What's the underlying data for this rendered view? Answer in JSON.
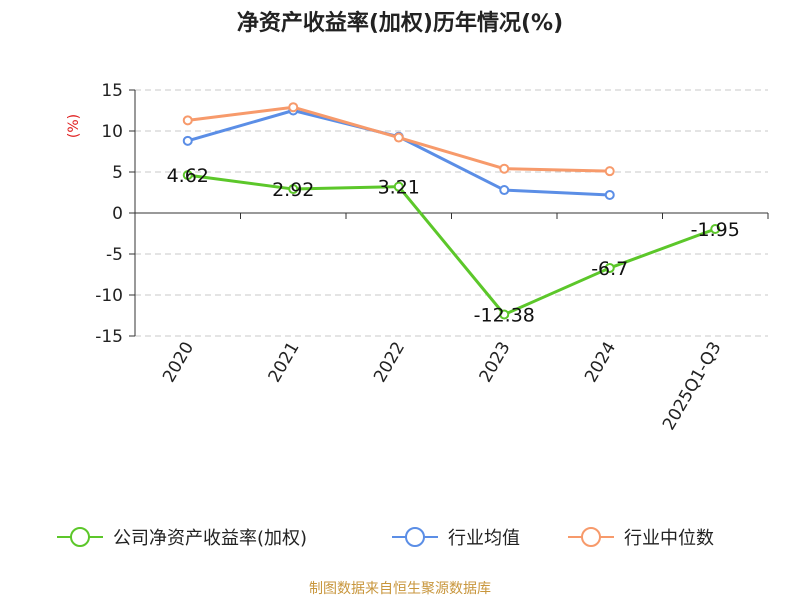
{
  "chart_data": {
    "type": "line",
    "title": "净资产收益率(加权)历年情况(%)",
    "ylabel": "(%)",
    "xlabel": "",
    "categories": [
      "2020",
      "2021",
      "2022",
      "2023",
      "2024",
      "2025Q1-Q3"
    ],
    "ylim": [
      -15,
      15
    ],
    "yticks": [
      15,
      10,
      5,
      0,
      -5,
      -10,
      -15
    ],
    "grid": true,
    "legend_position": "bottom",
    "series": [
      {
        "name": "公司净资产收益率(加权)",
        "color": "#5cc72a",
        "values": [
          4.62,
          2.92,
          3.21,
          -12.38,
          -6.7,
          -1.95
        ],
        "labels": [
          "4.62",
          "2.92",
          "3.21",
          "-12.38",
          "-6.7",
          "-1.95"
        ]
      },
      {
        "name": "行业均值",
        "color": "#5b8ee6",
        "values": [
          8.8,
          12.5,
          9.3,
          2.8,
          2.2,
          null
        ]
      },
      {
        "name": "行业中位数",
        "color": "#f79a6b",
        "values": [
          11.3,
          12.9,
          9.2,
          5.4,
          5.1,
          null
        ]
      }
    ]
  },
  "source": "制图数据来自恒生聚源数据库"
}
